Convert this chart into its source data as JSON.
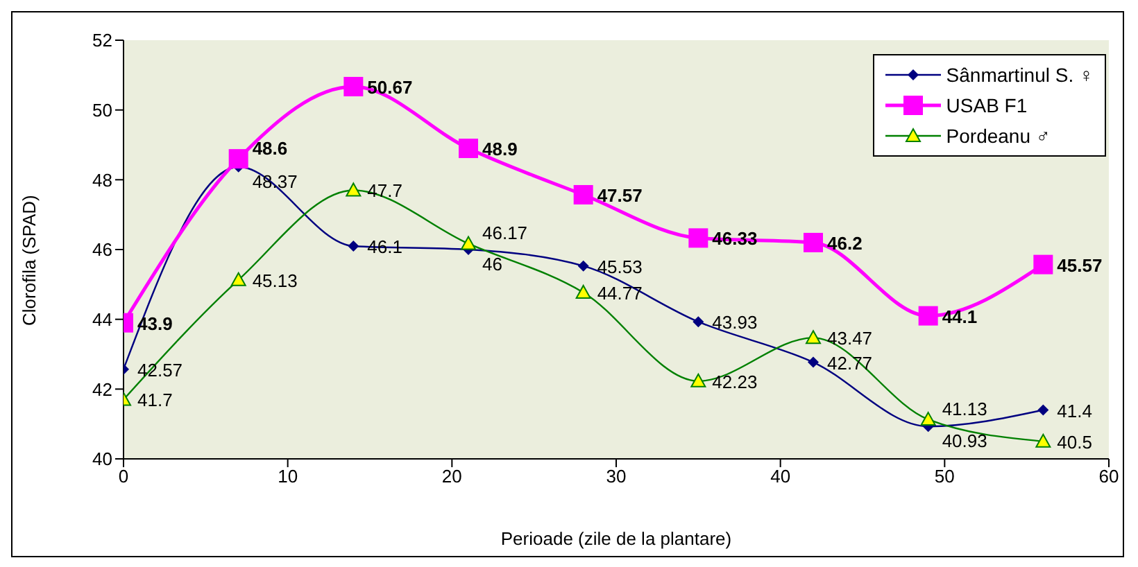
{
  "chart_data": {
    "type": "line",
    "xlabel": "Perioade (zile de la plantare)",
    "ylabel": "Clorofila (SPAD)",
    "x": [
      0,
      7,
      14,
      21,
      28,
      35,
      42,
      49,
      56
    ],
    "xlim": [
      0,
      60
    ],
    "xticks": [
      0,
      10,
      20,
      30,
      40,
      50,
      60
    ],
    "ylim": [
      40,
      52
    ],
    "yticks": [
      40,
      42,
      44,
      46,
      48,
      50,
      52
    ],
    "grid": false,
    "legend": "top right",
    "data_labels": true,
    "series": [
      {
        "name": "Sânmartinul S. ♀",
        "color": "#000080",
        "marker": "diamond",
        "values": [
          42.57,
          48.37,
          46.1,
          46,
          45.53,
          43.93,
          42.77,
          40.93,
          41.4
        ]
      },
      {
        "name": "USAB F1",
        "color": "#ff00ff",
        "marker": "square",
        "values": [
          43.9,
          48.6,
          50.67,
          48.9,
          47.57,
          46.33,
          46.2,
          44.1,
          45.57
        ]
      },
      {
        "name": "Pordeanu ♂",
        "color": "#008000",
        "marker": "triangle",
        "values": [
          41.7,
          45.13,
          47.7,
          46.17,
          44.77,
          42.23,
          43.47,
          41.13,
          40.5
        ]
      }
    ]
  }
}
